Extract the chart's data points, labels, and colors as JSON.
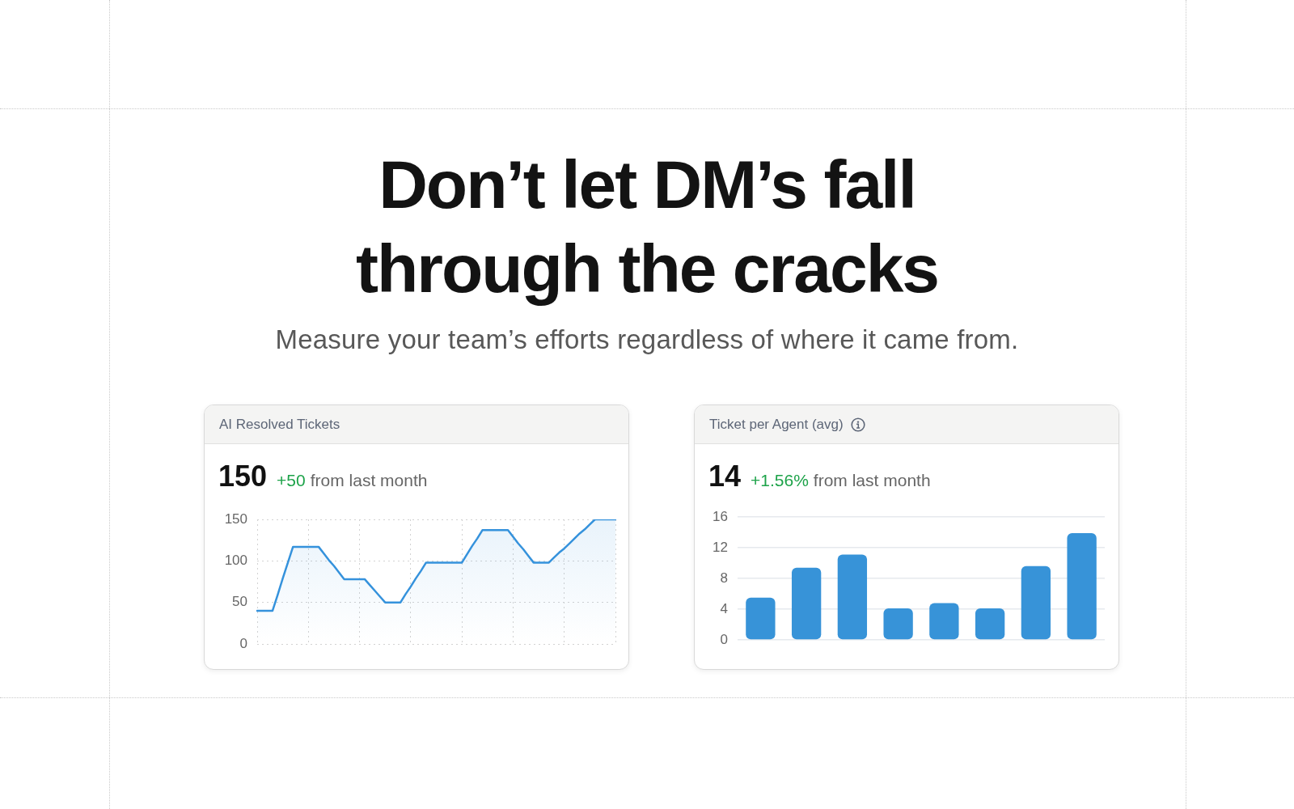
{
  "chart_data": [
    {
      "type": "other",
      "title": "Don’t let DM’s fall through the cracks",
      "subtitle": "Measure your team’s efforts regardless of where it came from."
    },
    {
      "type": "area",
      "title": "AI Resolved Tickets",
      "annotations": [
        "150",
        "+50",
        "from last month"
      ],
      "categories": [
        null,
        null,
        null,
        null,
        null,
        null,
        null,
        null,
        null,
        null,
        null,
        null,
        null,
        null,
        null,
        null,
        null,
        null,
        null,
        null,
        null,
        null,
        null,
        null,
        null,
        null,
        null,
        null,
        null,
        null,
        null,
        null,
        null,
        null,
        null,
        null,
        null,
        null,
        null,
        null,
        null,
        null,
        null,
        null,
        null,
        null,
        null,
        null,
        null,
        null,
        null,
        null,
        null,
        null,
        null,
        null,
        null,
        null,
        null,
        null,
        null,
        null,
        null,
        null,
        null,
        null,
        null,
        null,
        null,
        null,
        null
      ],
      "values": [
        40,
        40,
        40,
        40,
        59,
        79,
        98,
        117,
        117,
        117,
        117,
        117,
        117,
        109,
        101,
        94,
        86,
        78,
        78,
        78,
        78,
        78,
        71,
        64,
        57,
        50,
        50,
        50,
        50,
        60,
        69,
        79,
        88,
        98,
        98,
        98,
        98,
        98,
        98,
        98,
        98,
        108,
        118,
        127,
        137,
        137,
        137,
        137,
        137,
        137,
        129,
        121,
        114,
        106,
        98,
        98,
        98,
        98,
        104,
        110,
        115,
        121,
        127,
        133,
        138,
        144,
        150,
        150,
        150,
        150,
        150
      ],
      "color": "#3592dc",
      "ylim": [
        0,
        150
      ],
      "yticks": [
        0,
        50,
        100,
        150
      ],
      "grid": true,
      "tick_labels": "y",
      "marker": "none"
    },
    {
      "type": "bar",
      "title": "Ticket per Agent (avg)",
      "annotations": [
        "14",
        "+1.56%",
        "from last month"
      ],
      "categories": [
        null,
        null,
        null,
        null,
        null,
        null,
        null,
        null
      ],
      "values": [
        5.5,
        9.4,
        11.1,
        4.1,
        4.8,
        4.1,
        9.6,
        13.9
      ],
      "color": "#3793d8",
      "ylim": [
        0,
        16
      ],
      "yticks": [
        0,
        4,
        8,
        12,
        16
      ],
      "grid": "y",
      "tick_labels": "y"
    }
  ]
}
